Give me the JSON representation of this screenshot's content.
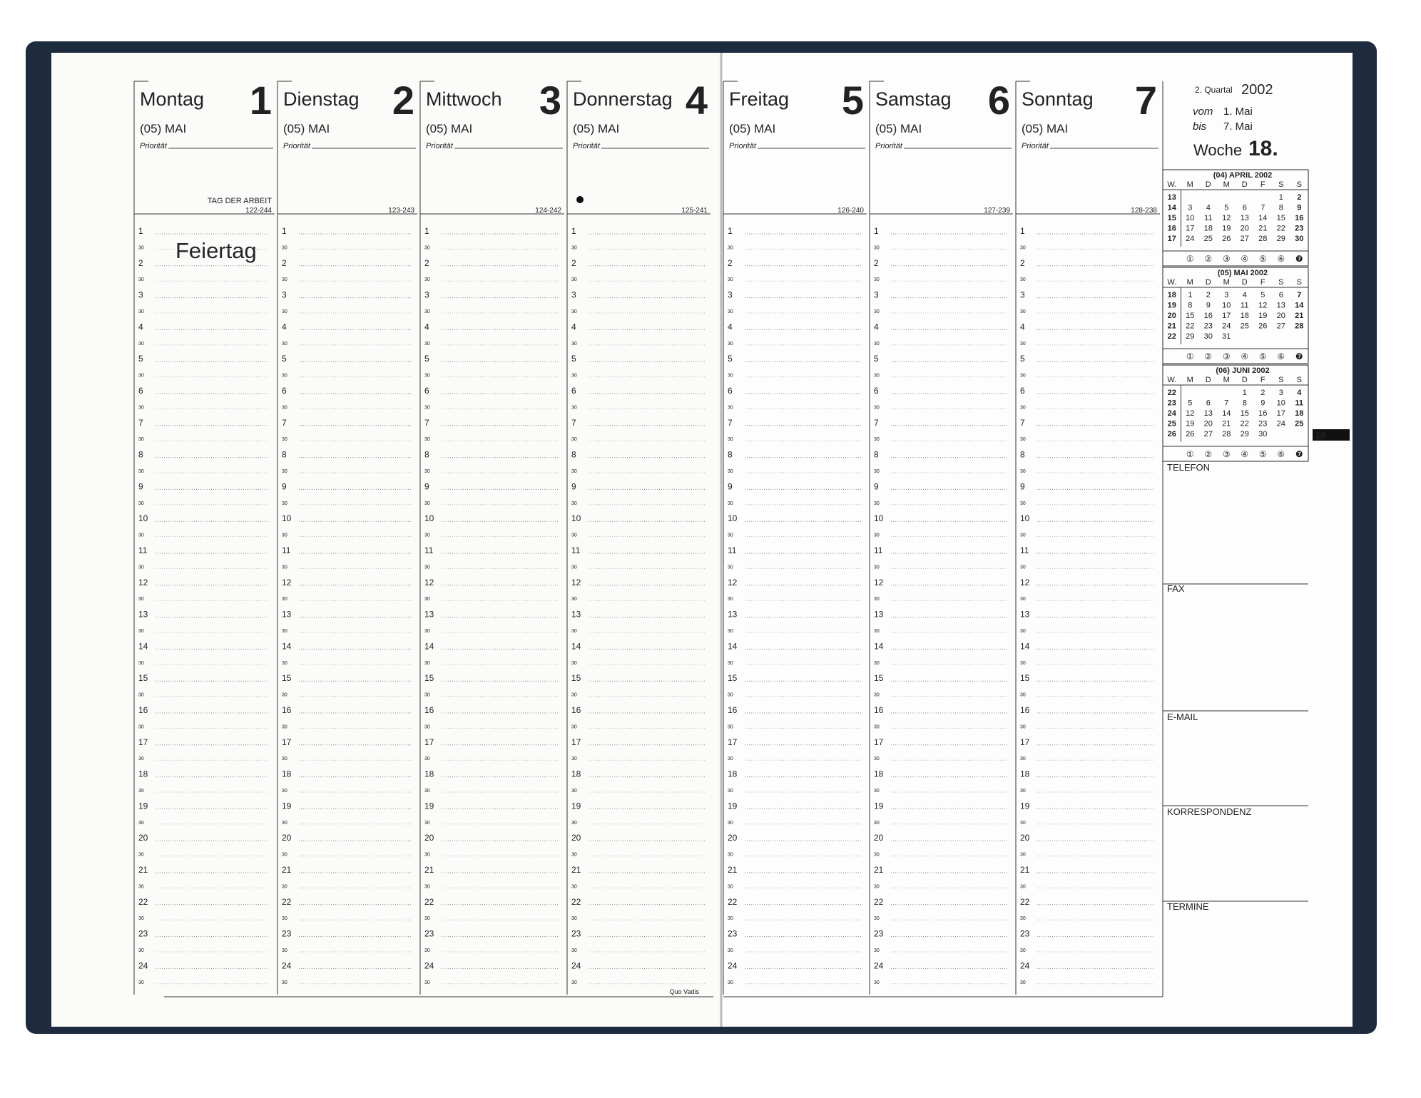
{
  "brand": "Quo Vadis",
  "days": [
    {
      "name": "Montag",
      "number": 1,
      "month": "(05) MAI",
      "priority": "Priorität",
      "code": "122-244",
      "holiday": "TAG DER ARBEIT",
      "note": "Feiertag"
    },
    {
      "name": "Dienstag",
      "number": 2,
      "month": "(05) MAI",
      "priority": "Priorität",
      "code": "123-243"
    },
    {
      "name": "Mittwoch",
      "number": 3,
      "month": "(05) MAI",
      "priority": "Priorität",
      "code": "124-242"
    },
    {
      "name": "Donnerstag",
      "number": 4,
      "month": "(05) MAI",
      "priority": "Priorität",
      "code": "125-241"
    },
    {
      "name": "Freitag",
      "number": 5,
      "month": "(05) MAI",
      "priority": "Priorität",
      "code": "126-240"
    },
    {
      "name": "Samstag",
      "number": 6,
      "month": "(05) MAI",
      "priority": "Priorität",
      "code": "127-239"
    },
    {
      "name": "Sonntag",
      "number": 7,
      "month": "(05) MAI",
      "priority": "Priorität",
      "code": "128-238"
    }
  ],
  "hours": [
    1,
    2,
    3,
    4,
    5,
    6,
    7,
    8,
    9,
    10,
    11,
    12,
    13,
    14,
    15,
    16,
    17,
    18,
    19,
    20,
    21,
    22,
    23,
    24
  ],
  "half": "30",
  "week": {
    "quarter": "2. Quartal",
    "year": "2002",
    "from_label": "vom",
    "from": "1. Mai",
    "to_label": "bis",
    "to": "7. Mai",
    "week_label": "Woche",
    "week_number": "18."
  },
  "calendar_header": [
    "W.",
    "M",
    "D",
    "M",
    "D",
    "F",
    "S",
    "S"
  ],
  "calendar_footer": [
    "①",
    "②",
    "③",
    "④",
    "⑤",
    "⑥",
    "❼"
  ],
  "calendars": [
    {
      "title": "(04) APRIL 2002",
      "weeks": [
        [
          13,
          null,
          null,
          null,
          null,
          null,
          1,
          2
        ],
        [
          14,
          3,
          4,
          5,
          6,
          7,
          8,
          9
        ],
        [
          15,
          10,
          11,
          12,
          13,
          14,
          15,
          16
        ],
        [
          16,
          17,
          18,
          19,
          20,
          21,
          22,
          23
        ],
        [
          17,
          24,
          25,
          26,
          27,
          28,
          29,
          30
        ]
      ]
    },
    {
      "title": "(05) MAI 2002",
      "weeks": [
        [
          18,
          1,
          2,
          3,
          4,
          5,
          6,
          7
        ],
        [
          19,
          8,
          9,
          10,
          11,
          12,
          13,
          14
        ],
        [
          20,
          15,
          16,
          17,
          18,
          19,
          20,
          21
        ],
        [
          21,
          22,
          23,
          24,
          25,
          26,
          27,
          28
        ],
        [
          22,
          29,
          30,
          31,
          null,
          null,
          null,
          null
        ]
      ]
    },
    {
      "title": "(06) JUNI 2002",
      "weeks": [
        [
          22,
          null,
          null,
          null,
          1,
          2,
          3,
          4
        ],
        [
          23,
          5,
          6,
          7,
          8,
          9,
          10,
          11
        ],
        [
          24,
          12,
          13,
          14,
          15,
          16,
          17,
          18
        ],
        [
          25,
          19,
          20,
          21,
          22,
          23,
          24,
          25
        ],
        [
          26,
          26,
          27,
          28,
          29,
          30,
          null,
          null
        ]
      ]
    }
  ],
  "sections": [
    "TELEFON",
    "FAX",
    "E-MAIL",
    "KORRESPONDENZ",
    "TERMINE"
  ],
  "tab": "18"
}
